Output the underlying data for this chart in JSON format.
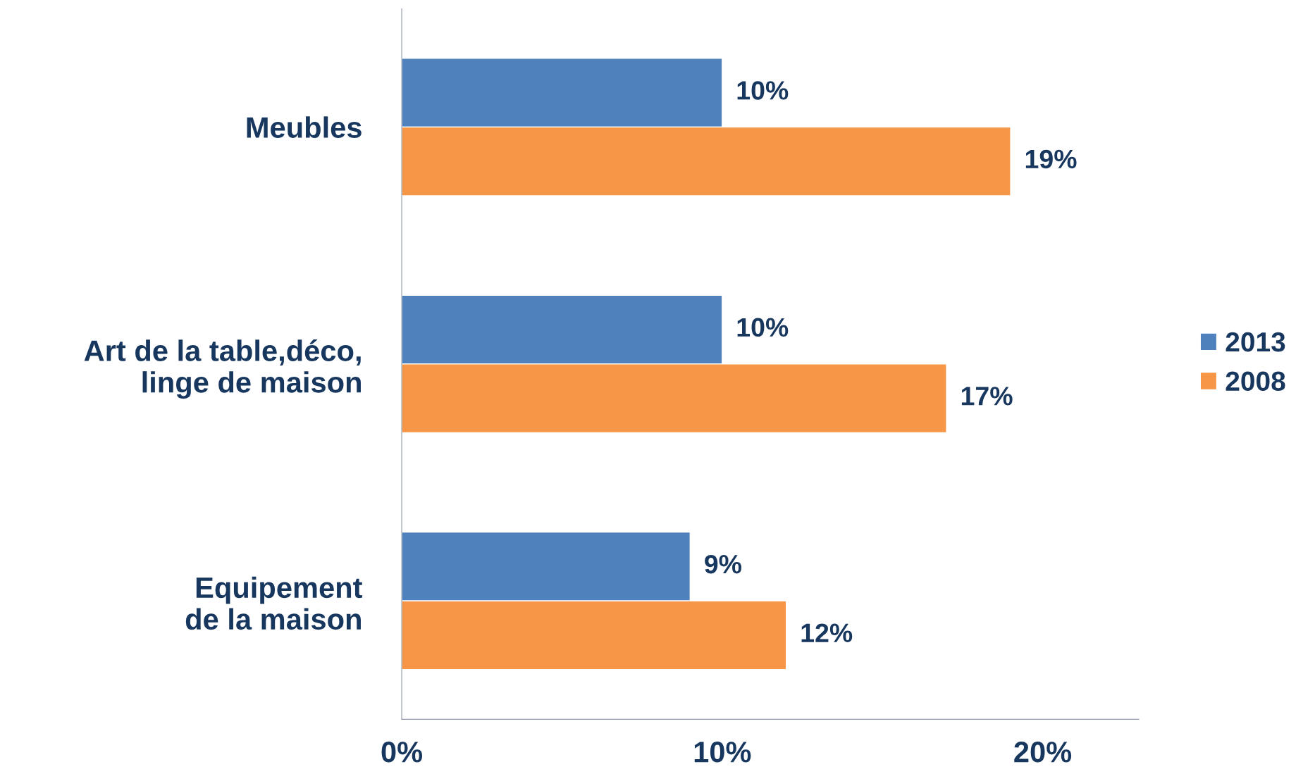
{
  "chart_data": {
    "type": "bar",
    "orientation": "horizontal",
    "categories": [
      "Meubles",
      "Art de la table,déco,\nlinge de maison",
      "Equipement\nde la maison"
    ],
    "series": [
      {
        "name": "2013",
        "color": "#4f81bd",
        "values": [
          10,
          10,
          9
        ],
        "value_labels": [
          "10%",
          "10%",
          "9%"
        ]
      },
      {
        "name": "2008",
        "color": "#f79646",
        "values": [
          19,
          17,
          12
        ],
        "value_labels": [
          "19%",
          "17%",
          "12%"
        ]
      }
    ],
    "xlim": [
      0,
      23
    ],
    "xticks": [
      {
        "value": 0,
        "label": "0%"
      },
      {
        "value": 10,
        "label": "10%"
      },
      {
        "value": 20,
        "label": "20%"
      }
    ],
    "grid": false,
    "legend": "right"
  }
}
